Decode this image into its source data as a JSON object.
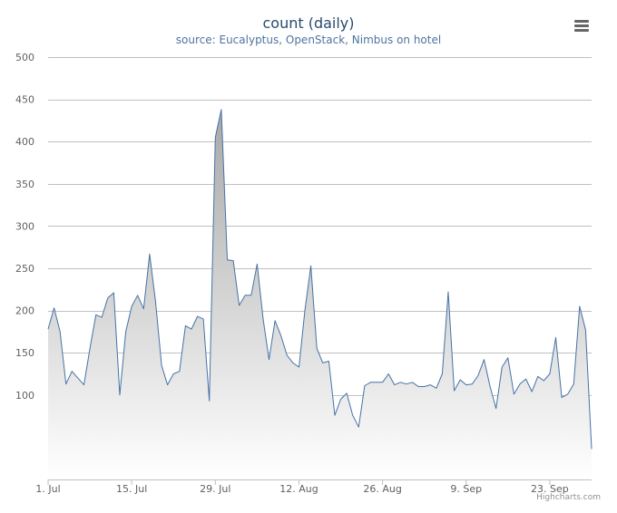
{
  "chart_data": {
    "type": "area",
    "title": "count (daily)",
    "subtitle": "source: Eucalyptus, OpenStack, Nimbus on hotel",
    "xlabel": "",
    "ylabel": "",
    "x_start": "2014-07-01",
    "x_tick_labels": [
      "1. Jul",
      "15. Jul",
      "29. Jul",
      "12. Aug",
      "26. Aug",
      "9. Sep",
      "23. Sep"
    ],
    "y_tick_labels": [
      "100",
      "150",
      "200",
      "250",
      "300",
      "350",
      "400",
      "450",
      "500"
    ],
    "ylim": [
      0,
      500
    ],
    "grid": true,
    "legend": false,
    "colors": {
      "line": "#4572a7",
      "fill_top": "#a8a8a8",
      "fill_bottom": "#ffffff",
      "grid": "#c0c0c0"
    },
    "values": [
      178,
      203,
      175,
      113,
      128,
      120,
      112,
      155,
      195,
      192,
      215,
      221,
      100,
      175,
      205,
      218,
      202,
      267,
      210,
      135,
      112,
      125,
      128,
      182,
      178,
      193,
      190,
      93,
      405,
      438,
      260,
      259,
      206,
      218,
      218,
      255,
      190,
      142,
      188,
      170,
      147,
      138,
      133,
      200,
      253,
      155,
      138,
      140,
      76,
      95,
      102,
      76,
      62,
      111,
      115,
      115,
      115,
      125,
      112,
      115,
      113,
      115,
      110,
      110,
      112,
      108,
      125,
      222,
      105,
      118,
      112,
      113,
      123,
      142,
      110,
      84,
      133,
      144,
      101,
      113,
      119,
      104,
      122,
      117,
      125,
      168,
      97,
      101,
      113,
      205,
      177,
      36
    ]
  },
  "menu": {
    "icon": "hamburger-menu-icon"
  },
  "credits": "Highcharts.com"
}
